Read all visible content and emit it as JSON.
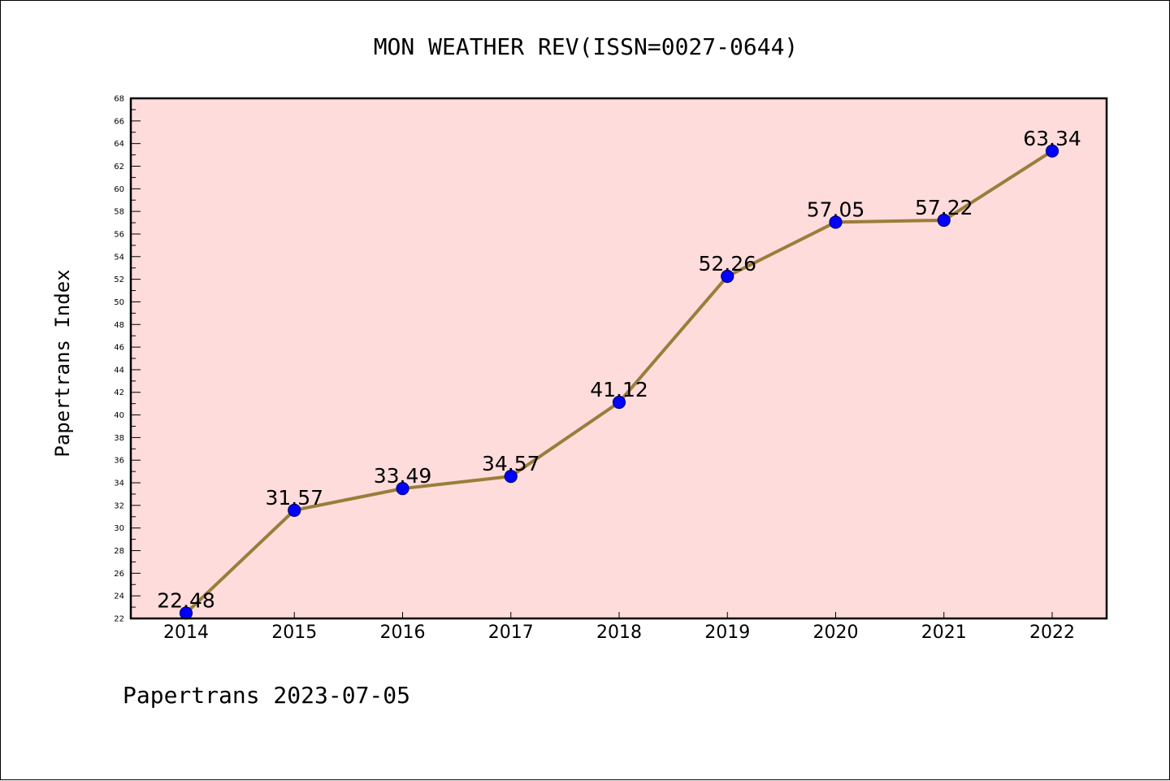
{
  "chart_data": {
    "type": "line",
    "title": "MON WEATHER REV(ISSN=0027-0644)",
    "xlabel": "",
    "ylabel": "Papertrans Index",
    "categories": [
      "2014",
      "2015",
      "2016",
      "2017",
      "2018",
      "2019",
      "2020",
      "2021",
      "2022"
    ],
    "series": [
      {
        "values": [
          22.48,
          31.57,
          33.49,
          34.57,
          41.12,
          52.26,
          57.05,
          57.22,
          63.34
        ],
        "data_labels": [
          "22.48",
          "31.57",
          "33.49",
          "34.57",
          "41.12",
          "52.26",
          "57.05",
          "57.22",
          "63.34"
        ]
      }
    ],
    "ylim": [
      22,
      68
    ],
    "y_ticks": [
      "22",
      "24",
      "26",
      "28",
      "30",
      "32",
      "34",
      "36",
      "38",
      "40",
      "42",
      "44",
      "46",
      "48",
      "50",
      "52",
      "54",
      "56",
      "58",
      "60",
      "62",
      "64",
      "66",
      "68"
    ],
    "grid": false,
    "legend": "none",
    "footer": "Papertrans 2023-07-05",
    "colors": {
      "plot_background": "#fddcdb",
      "line": "#9a7d3a",
      "marker_fill": "#0000ff",
      "marker_edge": "#000080",
      "axes": "#000000"
    }
  }
}
